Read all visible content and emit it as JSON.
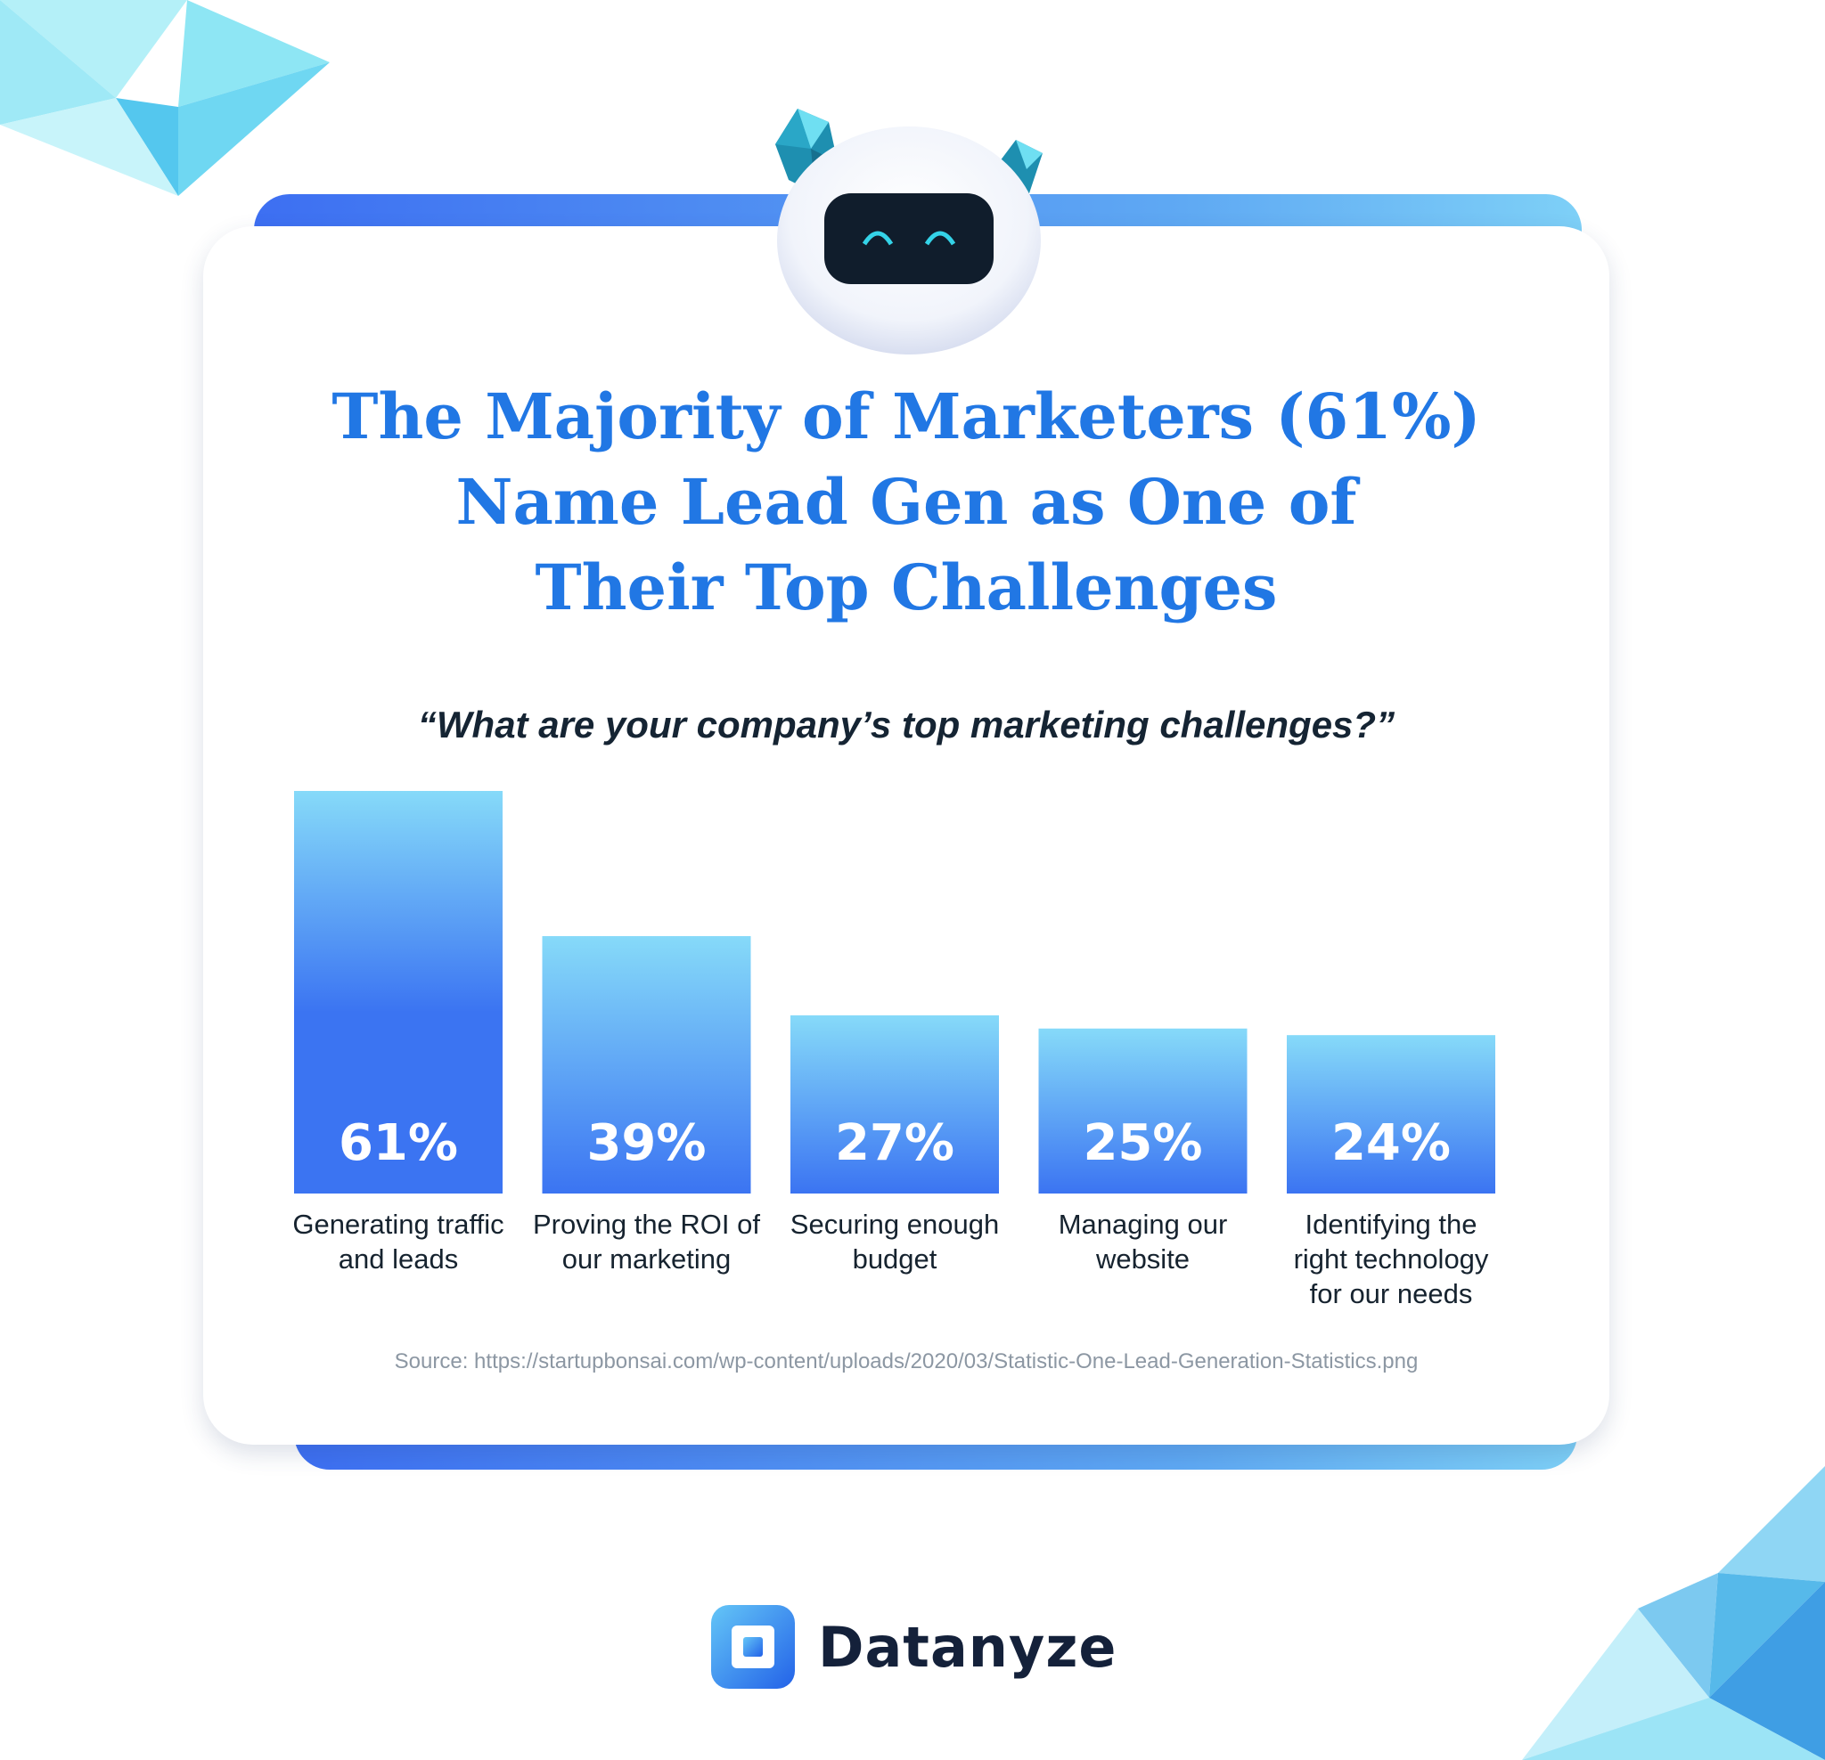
{
  "title_lines": [
    "The Majority of Marketers (61%)",
    "Name Lead Gen as One of",
    "Their Top Challenges"
  ],
  "question": "“What are your company’s top marketing challenges?”",
  "source": "Source: https://startupbonsai.com/wp-content/uploads/2020/03/Statistic-One-Lead-Generation-Statistics.png",
  "brand": {
    "name": "Datanyze"
  },
  "colors": {
    "title": "#2177e4",
    "bar_top": "#86daf9",
    "bar_bottom": "#3b74f2",
    "text_dark": "#16232f",
    "source": "#8c97a3"
  },
  "chart_data": {
    "type": "bar",
    "categories": [
      "Generating traffic and leads",
      "Proving the ROI of our marketing",
      "Securing enough budget",
      "Managing our website",
      "Identifying the right technology for our needs"
    ],
    "category_lines": [
      [
        "Generating traffic",
        "and leads"
      ],
      [
        "Proving the ROI of",
        "our marketing"
      ],
      [
        "Securing enough",
        "budget"
      ],
      [
        "Managing our",
        "website"
      ],
      [
        "Identifying the",
        "right technology",
        "for our needs"
      ]
    ],
    "values": [
      61,
      39,
      27,
      25,
      24
    ],
    "value_labels": [
      "61%",
      "39%",
      "27%",
      "25%",
      "24%"
    ],
    "title": "",
    "xlabel": "",
    "ylabel": "",
    "ylim": [
      0,
      61
    ],
    "grid": false,
    "legend": "none"
  }
}
